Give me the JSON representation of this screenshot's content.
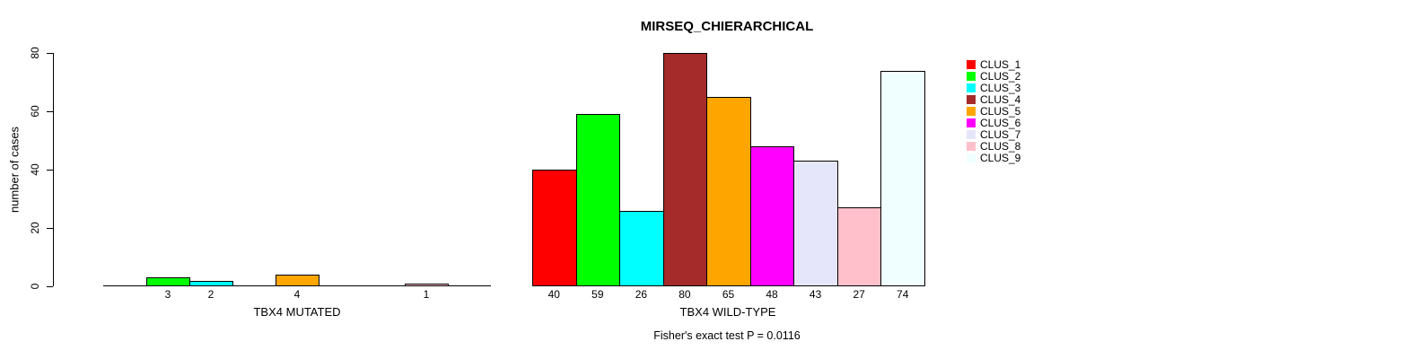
{
  "chart_data": {
    "type": "bar",
    "title": "MIRSEQ_CHIERARCHICAL",
    "ylabel": "number of cases",
    "ylim": [
      0,
      80
    ],
    "yticks": [
      0,
      20,
      40,
      60,
      80
    ],
    "grid": false,
    "legend_position": "right",
    "clusters": [
      "CLUS_1",
      "CLUS_2",
      "CLUS_3",
      "CLUS_4",
      "CLUS_5",
      "CLUS_6",
      "CLUS_7",
      "CLUS_8",
      "CLUS_9"
    ],
    "colors": [
      "#FF0000",
      "#00FF00",
      "#00FFFF",
      "#A52A2A",
      "#FFA500",
      "#FF00FF",
      "#E6E6FA",
      "#FFC0CB",
      "#F0FFFF"
    ],
    "groups": [
      {
        "label": "TBX4 MUTATED",
        "values": [
          0,
          3,
          2,
          0,
          4,
          0,
          0,
          1,
          0
        ]
      },
      {
        "label": "TBX4 WILD-TYPE",
        "values": [
          40,
          59,
          26,
          80,
          65,
          48,
          43,
          27,
          74
        ]
      }
    ],
    "annotation": "Fisher's exact test P = 0.0116"
  }
}
